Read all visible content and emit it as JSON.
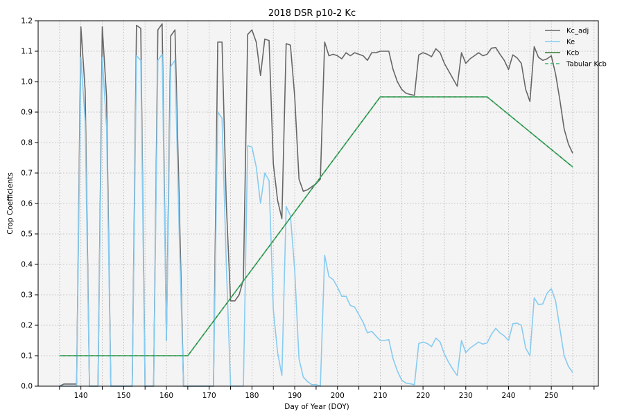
{
  "chart_data": {
    "type": "line",
    "title": "2018 DSR p10-2 Kc",
    "xlabel": "Day of Year (DOY)",
    "ylabel": "Crop Coefficients",
    "xlim": [
      130,
      261
    ],
    "ylim": [
      0,
      1.2
    ],
    "x_ticks": [
      140,
      150,
      160,
      170,
      180,
      190,
      200,
      210,
      220,
      230,
      240,
      250
    ],
    "x_minor_ticks": [
      135,
      145,
      155,
      165,
      175,
      185,
      195,
      205,
      215,
      225,
      235,
      245,
      255,
      260
    ],
    "y_ticks": [
      0.0,
      0.1,
      0.2,
      0.3,
      0.4,
      0.5,
      0.6,
      0.7,
      0.8,
      0.9,
      1.0,
      1.1,
      1.2
    ],
    "grid": true,
    "legend_position": "top-right",
    "colors": {
      "plot_background": "#f4f4f4",
      "grid": "#b0b0b0"
    },
    "series": [
      {
        "name": "Kc_adj",
        "color": "#666666",
        "style": "solid",
        "x": [
          135,
          136,
          137,
          138,
          139,
          140,
          141,
          142,
          143,
          144,
          145,
          146,
          147,
          148,
          149,
          150,
          151,
          152,
          153,
          154,
          155,
          156,
          157,
          158,
          159,
          160,
          161,
          162,
          163,
          164,
          165,
          166,
          167,
          168,
          169,
          170,
          171,
          172,
          173,
          174,
          175,
          176,
          177,
          178,
          179,
          180,
          181,
          182,
          183,
          184,
          185,
          186,
          187,
          188,
          189,
          190,
          191,
          192,
          193,
          194,
          195,
          196,
          197,
          198,
          199,
          200,
          201,
          202,
          203,
          204,
          205,
          206,
          207,
          208,
          209,
          210,
          211,
          212,
          213,
          214,
          215,
          216,
          217,
          218,
          219,
          220,
          221,
          222,
          223,
          224,
          225,
          226,
          227,
          228,
          229,
          230,
          231,
          232,
          233,
          234,
          235,
          236,
          237,
          238,
          239,
          240,
          241,
          242,
          243,
          244,
          245,
          246,
          247,
          248,
          249,
          250,
          251,
          252,
          253,
          254,
          255
        ],
        "y": [
          0.0,
          0.007,
          0.007,
          0.007,
          0.007,
          1.18,
          0.97,
          0.0,
          0.0,
          0.0,
          1.18,
          0.95,
          0.0,
          0.0,
          0.0,
          0.0,
          0.0,
          0.0,
          1.185,
          1.175,
          0.0,
          0.0,
          0.0,
          1.17,
          1.19,
          0.15,
          1.15,
          1.17,
          0.6,
          0.0,
          0.0,
          0.0,
          0.0,
          0.0,
          0.0,
          0.0,
          0.0,
          1.13,
          1.13,
          0.6,
          0.28,
          0.28,
          0.3,
          0.35,
          1.155,
          1.17,
          1.13,
          1.02,
          1.14,
          1.135,
          0.73,
          0.61,
          0.55,
          1.125,
          1.12,
          0.95,
          0.68,
          0.64,
          0.645,
          0.655,
          0.665,
          0.68,
          1.13,
          1.085,
          1.09,
          1.085,
          1.075,
          1.095,
          1.085,
          1.095,
          1.09,
          1.085,
          1.07,
          1.095,
          1.095,
          1.1,
          1.1,
          1.1,
          1.04,
          1.0,
          0.975,
          0.962,
          0.958,
          0.955,
          1.088,
          1.095,
          1.09,
          1.082,
          1.108,
          1.095,
          1.06,
          1.035,
          1.01,
          0.985,
          1.095,
          1.06,
          1.075,
          1.085,
          1.095,
          1.085,
          1.09,
          1.11,
          1.112,
          1.09,
          1.07,
          1.04,
          1.088,
          1.078,
          1.06,
          0.975,
          0.935,
          1.115,
          1.08,
          1.07,
          1.075,
          1.085,
          1.025,
          0.94,
          0.845,
          0.795,
          0.765
        ]
      },
      {
        "name": "Ke",
        "color": "#87cbf0",
        "style": "solid",
        "x": [
          135,
          136,
          137,
          138,
          139,
          140,
          141,
          142,
          143,
          144,
          145,
          146,
          147,
          148,
          149,
          150,
          151,
          152,
          153,
          154,
          155,
          156,
          157,
          158,
          159,
          160,
          161,
          162,
          163,
          164,
          165,
          166,
          167,
          168,
          169,
          170,
          171,
          172,
          173,
          174,
          175,
          176,
          177,
          178,
          179,
          180,
          181,
          182,
          183,
          184,
          185,
          186,
          187,
          188,
          189,
          190,
          191,
          192,
          193,
          194,
          195,
          196,
          197,
          198,
          199,
          200,
          201,
          202,
          203,
          204,
          205,
          206,
          207,
          208,
          209,
          210,
          211,
          212,
          213,
          214,
          215,
          216,
          217,
          218,
          219,
          220,
          221,
          222,
          223,
          224,
          225,
          226,
          227,
          228,
          229,
          230,
          231,
          232,
          233,
          234,
          235,
          236,
          237,
          238,
          239,
          240,
          241,
          242,
          243,
          244,
          245,
          246,
          247,
          248,
          249,
          250,
          251,
          252,
          253,
          254,
          255
        ],
        "y": [
          0.0,
          0.0,
          0.0,
          0.0,
          0.0,
          1.08,
          0.87,
          0.0,
          0.0,
          0.0,
          1.08,
          0.85,
          0.0,
          0.0,
          0.0,
          0.0,
          0.0,
          0.0,
          1.085,
          1.07,
          0.0,
          0.0,
          0.0,
          1.07,
          1.09,
          0.15,
          1.05,
          1.07,
          0.5,
          0.0,
          0.0,
          0.0,
          0.0,
          0.0,
          0.0,
          0.0,
          0.0,
          0.9,
          0.88,
          0.4,
          0.0,
          0.0,
          0.0,
          0.0,
          0.79,
          0.785,
          0.72,
          0.6,
          0.7,
          0.675,
          0.25,
          0.11,
          0.035,
          0.59,
          0.56,
          0.38,
          0.09,
          0.03,
          0.015,
          0.005,
          0.005,
          0.0,
          0.43,
          0.36,
          0.35,
          0.325,
          0.295,
          0.295,
          0.265,
          0.26,
          0.235,
          0.21,
          0.175,
          0.18,
          0.165,
          0.15,
          0.15,
          0.153,
          0.09,
          0.05,
          0.02,
          0.01,
          0.008,
          0.005,
          0.14,
          0.145,
          0.14,
          0.13,
          0.158,
          0.145,
          0.105,
          0.078,
          0.055,
          0.035,
          0.15,
          0.11,
          0.125,
          0.135,
          0.145,
          0.138,
          0.142,
          0.17,
          0.19,
          0.175,
          0.165,
          0.15,
          0.205,
          0.207,
          0.2,
          0.125,
          0.1,
          0.29,
          0.268,
          0.27,
          0.305,
          0.32,
          0.28,
          0.19,
          0.1,
          0.065,
          0.045
        ]
      },
      {
        "name": "Kcb",
        "color": "#2e7d32",
        "style": "solid",
        "x": [
          135,
          165,
          210,
          235,
          255
        ],
        "y": [
          0.1,
          0.1,
          0.95,
          0.95,
          0.72
        ]
      },
      {
        "name": "Tabular Kcb",
        "color": "#3cb371",
        "style": "dashed",
        "x": [
          135,
          165,
          210,
          235,
          255
        ],
        "y": [
          0.1,
          0.1,
          0.95,
          0.95,
          0.72
        ]
      }
    ]
  }
}
